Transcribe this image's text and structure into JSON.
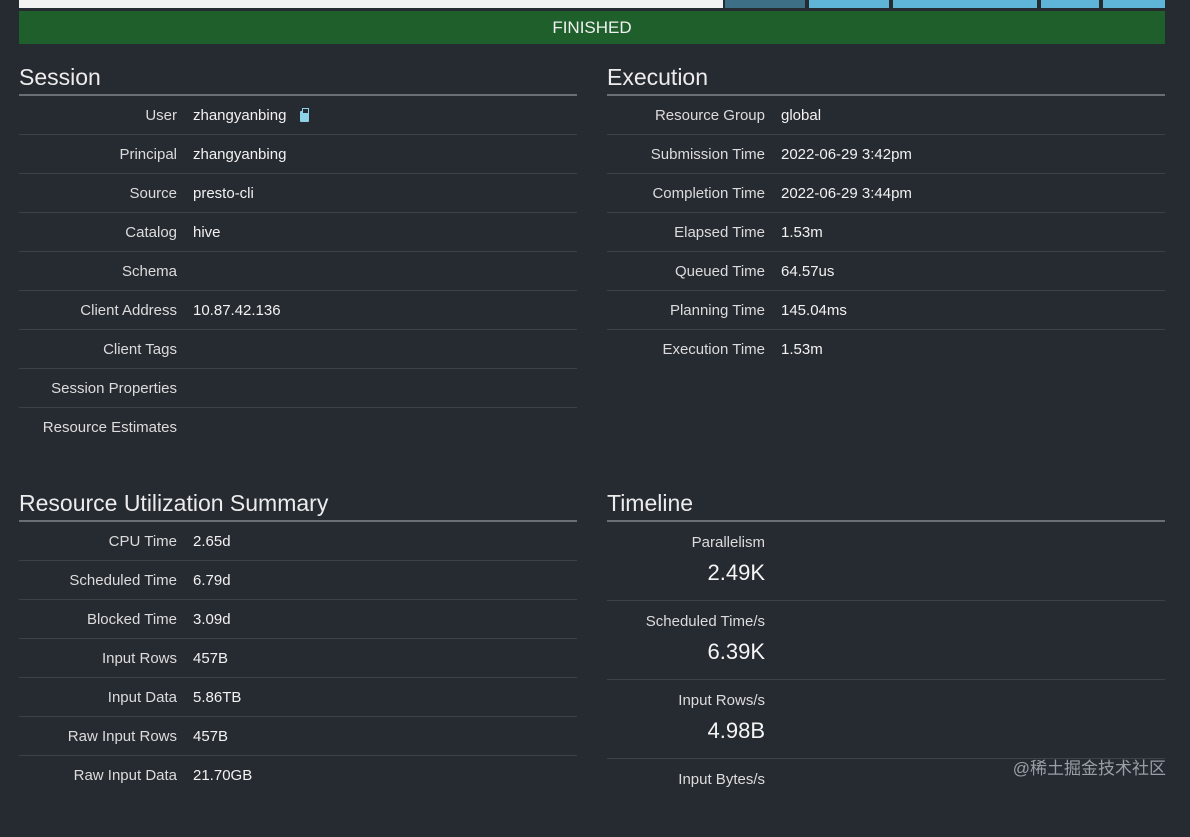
{
  "status": "FINISHED",
  "session": {
    "title": "Session",
    "rows": [
      {
        "label": "User",
        "value": "zhangyanbing"
      },
      {
        "label": "Principal",
        "value": "zhangyanbing"
      },
      {
        "label": "Source",
        "value": "presto-cli"
      },
      {
        "label": "Catalog",
        "value": "hive"
      },
      {
        "label": "Schema",
        "value": ""
      },
      {
        "label": "Client Address",
        "value": "10.87.42.136"
      },
      {
        "label": "Client Tags",
        "value": ""
      },
      {
        "label": "Session Properties",
        "value": ""
      },
      {
        "label": "Resource Estimates",
        "value": ""
      }
    ],
    "copy_icon": "clipboard-icon"
  },
  "execution": {
    "title": "Execution",
    "rows": [
      {
        "label": "Resource Group",
        "value": "global"
      },
      {
        "label": "Submission Time",
        "value": "2022-06-29 3:42pm"
      },
      {
        "label": "Completion Time",
        "value": "2022-06-29 3:44pm"
      },
      {
        "label": "Elapsed Time",
        "value": "1.53m"
      },
      {
        "label": "Queued Time",
        "value": "64.57us"
      },
      {
        "label": "Planning Time",
        "value": "145.04ms"
      },
      {
        "label": "Execution Time",
        "value": "1.53m"
      }
    ]
  },
  "resource": {
    "title": "Resource Utilization Summary",
    "rows": [
      {
        "label": "CPU Time",
        "value": "2.65d"
      },
      {
        "label": "Scheduled Time",
        "value": "6.79d"
      },
      {
        "label": "Blocked Time",
        "value": "3.09d"
      },
      {
        "label": "Input Rows",
        "value": "457B"
      },
      {
        "label": "Input Data",
        "value": "5.86TB"
      },
      {
        "label": "Raw Input Rows",
        "value": "457B"
      },
      {
        "label": "Raw Input Data",
        "value": "21.70GB"
      }
    ]
  },
  "timeline": {
    "title": "Timeline",
    "blocks": [
      {
        "label": "Parallelism",
        "value": "2.49K"
      },
      {
        "label": "Scheduled Time/s",
        "value": "6.39K"
      },
      {
        "label": "Input Rows/s",
        "value": "4.98B"
      },
      {
        "label": "Input Bytes/s",
        "value": ""
      }
    ]
  },
  "watermark": "@稀土掘金技术社区",
  "colors": {
    "status_bg": "#1e5f2c",
    "background": "#262a31",
    "progress": "#5fb5d8"
  }
}
